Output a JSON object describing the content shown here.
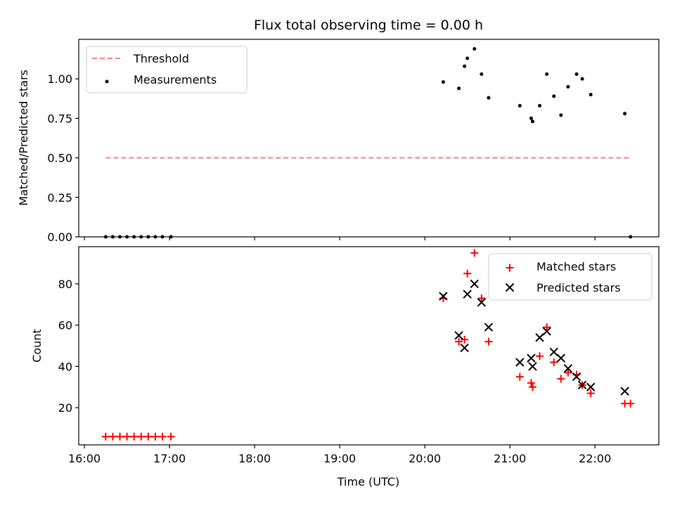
{
  "chart_data": [
    {
      "type": "scatter",
      "title": "Flux total observing time = 0.00 h",
      "xlabel": "",
      "ylabel": "Matched/Predicted stars",
      "x_format": "HH:MM",
      "xlim": [
        "15:56",
        "22:45"
      ],
      "ylim": [
        0,
        1.25
      ],
      "x_ticks": [
        "16:00",
        "17:00",
        "18:00",
        "19:00",
        "20:00",
        "21:00",
        "22:00"
      ],
      "y_ticks": [
        "0.00",
        "0.25",
        "0.50",
        "0.75",
        "1.00"
      ],
      "legend_position": "upper-left",
      "series": [
        {
          "name": "Threshold",
          "style": "dashed-line",
          "color": "#ff7f7f",
          "points": [
            {
              "x": "16:15",
              "y": 0.5
            },
            {
              "x": "22:25",
              "y": 0.5
            }
          ]
        },
        {
          "name": "Measurements",
          "style": "dot",
          "color": "#000000",
          "points": [
            {
              "x": "16:15",
              "y": 0.0
            },
            {
              "x": "16:20",
              "y": 0.0
            },
            {
              "x": "16:25",
              "y": 0.0
            },
            {
              "x": "16:30",
              "y": 0.0
            },
            {
              "x": "16:35",
              "y": 0.0
            },
            {
              "x": "16:40",
              "y": 0.0
            },
            {
              "x": "16:45",
              "y": 0.0
            },
            {
              "x": "16:50",
              "y": 0.0
            },
            {
              "x": "16:55",
              "y": 0.0
            },
            {
              "x": "17:01",
              "y": 0.0
            },
            {
              "x": "20:13",
              "y": 0.98
            },
            {
              "x": "20:24",
              "y": 0.94
            },
            {
              "x": "20:28",
              "y": 1.08
            },
            {
              "x": "20:30",
              "y": 1.13
            },
            {
              "x": "20:35",
              "y": 1.19
            },
            {
              "x": "20:40",
              "y": 1.03
            },
            {
              "x": "20:45",
              "y": 0.88
            },
            {
              "x": "21:07",
              "y": 0.83
            },
            {
              "x": "21:15",
              "y": 0.75
            },
            {
              "x": "21:16",
              "y": 0.73
            },
            {
              "x": "21:21",
              "y": 0.83
            },
            {
              "x": "21:26",
              "y": 1.03
            },
            {
              "x": "21:31",
              "y": 0.89
            },
            {
              "x": "21:36",
              "y": 0.77
            },
            {
              "x": "21:41",
              "y": 0.95
            },
            {
              "x": "21:47",
              "y": 1.03
            },
            {
              "x": "21:51",
              "y": 1.0
            },
            {
              "x": "21:57",
              "y": 0.9
            },
            {
              "x": "22:21",
              "y": 0.78
            },
            {
              "x": "22:25",
              "y": 0.0
            }
          ]
        }
      ]
    },
    {
      "type": "scatter",
      "title": "",
      "xlabel": "Time (UTC)",
      "ylabel": "Count",
      "x_format": "HH:MM",
      "xlim": [
        "15:56",
        "22:45"
      ],
      "ylim": [
        2,
        98
      ],
      "x_ticks": [
        "16:00",
        "17:00",
        "18:00",
        "19:00",
        "20:00",
        "21:00",
        "22:00"
      ],
      "y_ticks": [
        "20",
        "40",
        "60",
        "80"
      ],
      "legend_position": "upper-right",
      "series": [
        {
          "name": "Matched stars",
          "marker": "plus",
          "color": "#ff0000",
          "points": [
            {
              "x": "16:15",
              "y": 6
            },
            {
              "x": "16:20",
              "y": 6
            },
            {
              "x": "16:25",
              "y": 6
            },
            {
              "x": "16:30",
              "y": 6
            },
            {
              "x": "16:35",
              "y": 6
            },
            {
              "x": "16:40",
              "y": 6
            },
            {
              "x": "16:45",
              "y": 6
            },
            {
              "x": "16:50",
              "y": 6
            },
            {
              "x": "16:55",
              "y": 6
            },
            {
              "x": "17:01",
              "y": 6
            },
            {
              "x": "20:13",
              "y": 73
            },
            {
              "x": "20:24",
              "y": 52
            },
            {
              "x": "20:28",
              "y": 53
            },
            {
              "x": "20:30",
              "y": 85
            },
            {
              "x": "20:35",
              "y": 95
            },
            {
              "x": "20:40",
              "y": 73
            },
            {
              "x": "20:45",
              "y": 52
            },
            {
              "x": "21:07",
              "y": 35
            },
            {
              "x": "21:15",
              "y": 32
            },
            {
              "x": "21:16",
              "y": 30
            },
            {
              "x": "21:21",
              "y": 45
            },
            {
              "x": "21:26",
              "y": 59
            },
            {
              "x": "21:31",
              "y": 42
            },
            {
              "x": "21:36",
              "y": 34
            },
            {
              "x": "21:41",
              "y": 37
            },
            {
              "x": "21:47",
              "y": 36
            },
            {
              "x": "21:51",
              "y": 31
            },
            {
              "x": "21:57",
              "y": 27
            },
            {
              "x": "22:21",
              "y": 22
            },
            {
              "x": "22:25",
              "y": 22
            }
          ]
        },
        {
          "name": "Predicted stars",
          "marker": "x",
          "color": "#000000",
          "points": [
            {
              "x": "20:13",
              "y": 74
            },
            {
              "x": "20:24",
              "y": 55
            },
            {
              "x": "20:28",
              "y": 49
            },
            {
              "x": "20:30",
              "y": 75
            },
            {
              "x": "20:35",
              "y": 80
            },
            {
              "x": "20:40",
              "y": 71
            },
            {
              "x": "20:45",
              "y": 59
            },
            {
              "x": "21:07",
              "y": 42
            },
            {
              "x": "21:15",
              "y": 44
            },
            {
              "x": "21:16",
              "y": 40
            },
            {
              "x": "21:21",
              "y": 54
            },
            {
              "x": "21:26",
              "y": 57
            },
            {
              "x": "21:31",
              "y": 47
            },
            {
              "x": "21:36",
              "y": 44
            },
            {
              "x": "21:41",
              "y": 39
            },
            {
              "x": "21:47",
              "y": 35
            },
            {
              "x": "21:51",
              "y": 31
            },
            {
              "x": "21:57",
              "y": 30
            },
            {
              "x": "22:21",
              "y": 28
            }
          ]
        }
      ]
    }
  ]
}
